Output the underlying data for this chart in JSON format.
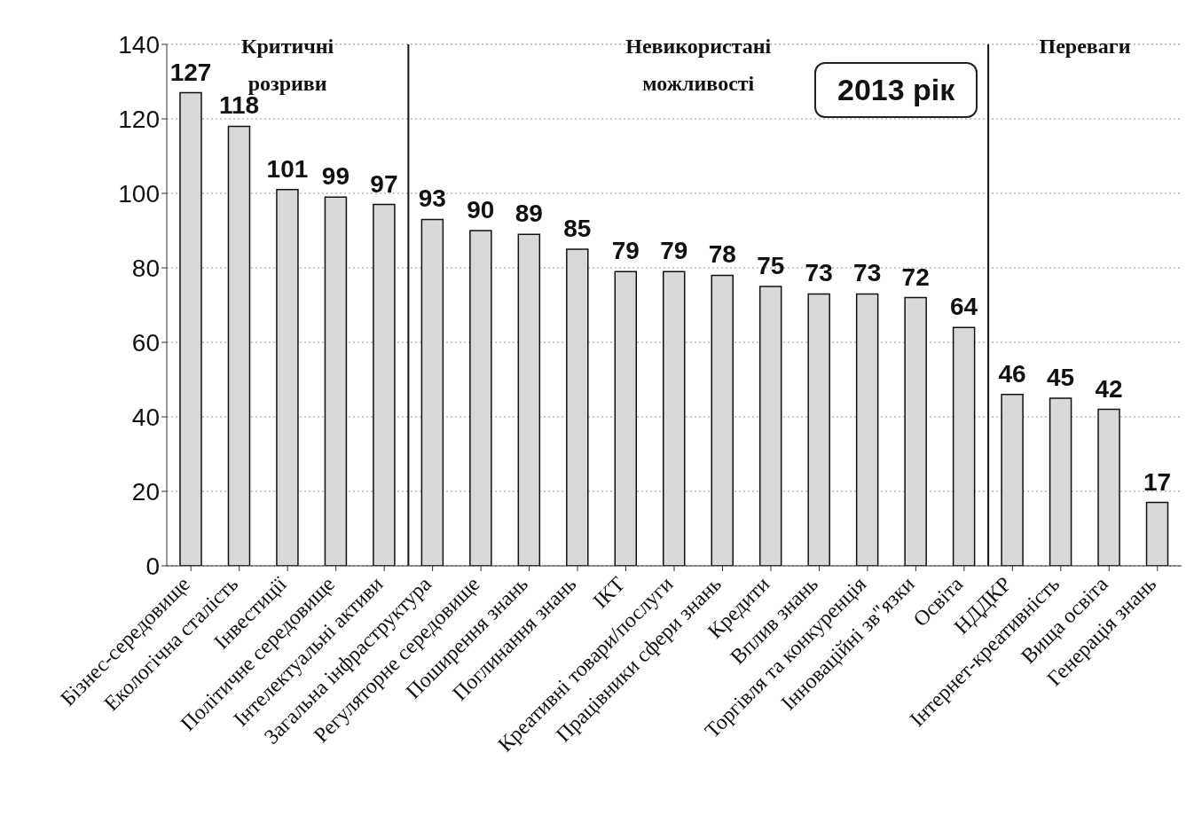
{
  "chart_data": {
    "type": "bar",
    "title": "2013 рік",
    "categories": [
      "Бізнес-середовище",
      "Екологічна сталість",
      "Інвестиції",
      "Політичне середовище",
      "Інтелектуальні активи",
      "Загальна інфраструктура",
      "Регуляторне середовище",
      "Поширення знань",
      "Поглинання знань",
      "ІКТ",
      "Креативні товари/послуги",
      "Працівники сфери знань",
      "Кредити",
      "Вплив знань",
      "Торгівля та конкуренція",
      "Інноваційні зв\"язки",
      "Освіта",
      "НДДКР",
      "Інтернет-креативність",
      "Вища освіта",
      "Генерація знань"
    ],
    "values": [
      127,
      118,
      101,
      99,
      97,
      93,
      90,
      89,
      85,
      79,
      79,
      78,
      75,
      73,
      73,
      72,
      64,
      46,
      45,
      42,
      17
    ],
    "color": "#d9d9d9",
    "ylim": [
      0,
      140
    ],
    "yticks": [
      0,
      20,
      40,
      60,
      80,
      100,
      120,
      140
    ],
    "grid": "y",
    "data_labels": true,
    "bands": [
      {
        "axis": "x",
        "from": "Бізнес-середовище",
        "to": "Інтелектуальні активи",
        "label": "Критичні розриви",
        "color": "#ffffff"
      },
      {
        "axis": "x",
        "from": "Загальна інфраструктура",
        "to": "Освіта",
        "label": "Невикористані можливості",
        "color": "#ffffff"
      },
      {
        "axis": "x",
        "from": "НДДКР",
        "to": "Генерація знань",
        "label": "Переваги",
        "color": "#ffffff"
      }
    ]
  }
}
